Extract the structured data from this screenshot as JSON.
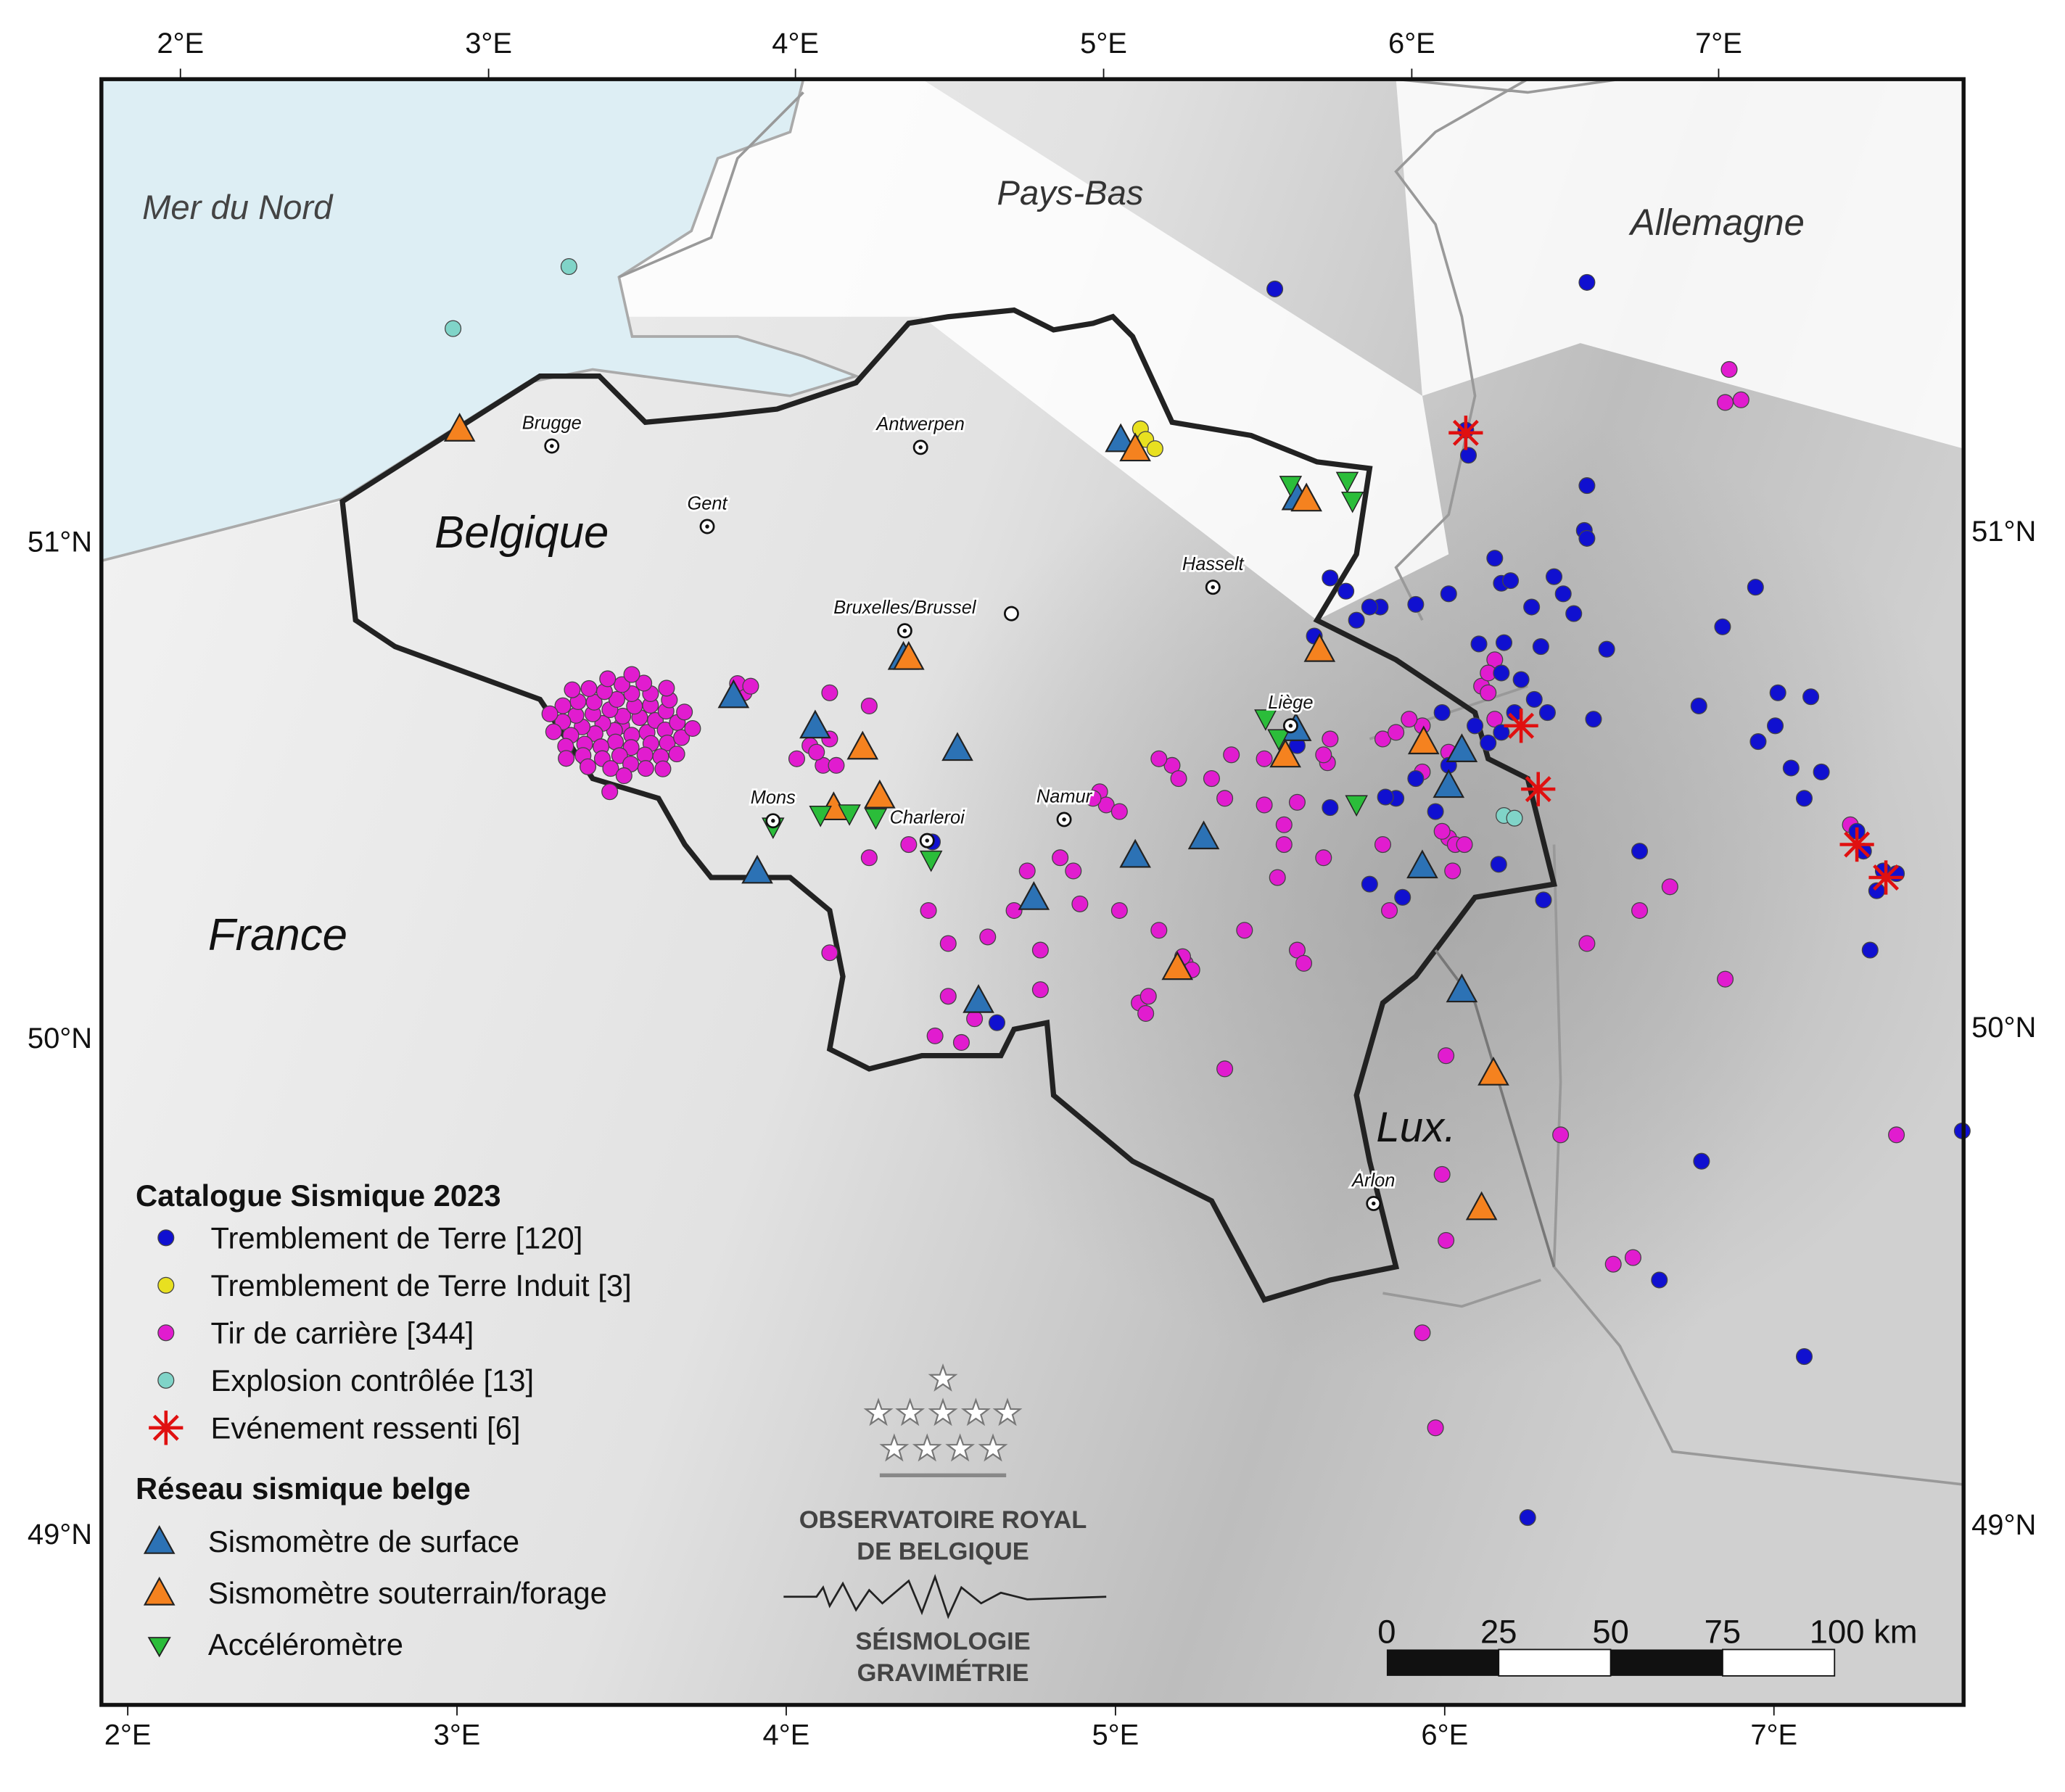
{
  "axes": {
    "lon_ticks": [
      "2°E",
      "3°E",
      "4°E",
      "5°E",
      "6°E",
      "7°E"
    ],
    "lat_ticks": [
      "51°N",
      "50°N",
      "49°N"
    ]
  },
  "map": {
    "sea_label": "Mer du Nord",
    "country_labels": [
      "Pays-Bas",
      "Allemagne",
      "Belgique",
      "France",
      "Lux."
    ],
    "cities": [
      "Brugge",
      "Antwerpen",
      "Gent",
      "Hasselt",
      "Bruxelles/Brussel",
      "Liège",
      "Mons",
      "Charleroi",
      "Namur",
      "Arlon"
    ]
  },
  "legend": {
    "catalogue_title": "Catalogue Sismique 2023",
    "catalogue_items": [
      "Tremblement de Terre [120]",
      "Tremblement de Terre Induit [3]",
      "Tir de carrière [344]",
      "Explosion contrôlée [13]",
      "Evénement ressenti [6]"
    ],
    "network_title": "Réseau sismique belge",
    "network_items": [
      "Sismomètre de surface",
      "Sismomètre souterrain/forage",
      "Accéléromètre"
    ]
  },
  "logo": {
    "line1": "OBSERVATOIRE ROYAL",
    "line2": "DE BELGIQUE",
    "line3": "SÉISMOLOGIE",
    "line4": "GRAVIMÉTRIE"
  },
  "scale_bar": {
    "labels": [
      "0",
      "25",
      "50",
      "75",
      "100 km"
    ]
  }
}
